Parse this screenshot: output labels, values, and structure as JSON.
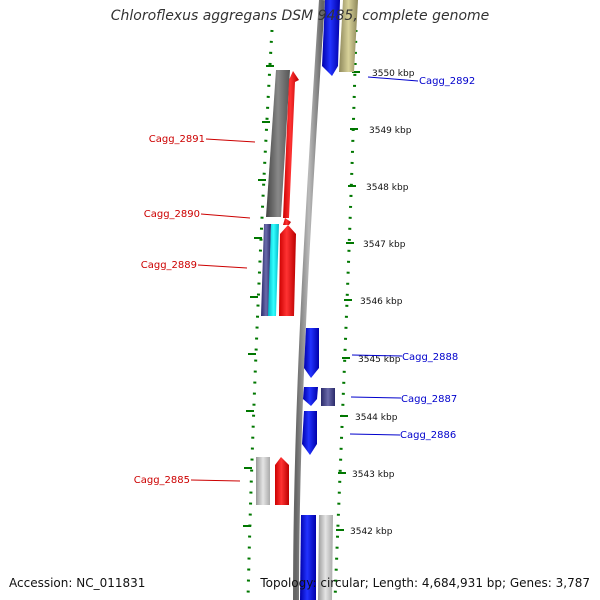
{
  "title": "Chloroflexus aggregans DSM 9485, complete genome",
  "footer": {
    "accession": "Accession: NC_011831",
    "summary": "Topology: circular; Length: 4,684,931 bp; Genes: 3,787"
  },
  "colors": {
    "forward_label": "#cc0000",
    "reverse_label": "#0000cc",
    "ruler": "#007700",
    "backbone": "#808080"
  },
  "ticks": [
    "3550 kbp",
    "3549 kbp",
    "3548 kbp",
    "3547 kbp",
    "3546 kbp",
    "3545 kbp",
    "3544 kbp",
    "3543 kbp",
    "3542 kbp"
  ],
  "gene_labels": [
    {
      "id": "Cagg_2892",
      "strand": "reverse"
    },
    {
      "id": "Cagg_2891",
      "strand": "forward"
    },
    {
      "id": "Cagg_2890",
      "strand": "forward"
    },
    {
      "id": "Cagg_2889",
      "strand": "forward"
    },
    {
      "id": "Cagg_2888",
      "strand": "reverse"
    },
    {
      "id": "Cagg_2887",
      "strand": "reverse"
    },
    {
      "id": "Cagg_2886",
      "strand": "reverse"
    },
    {
      "id": "Cagg_2885",
      "strand": "forward"
    }
  ]
}
